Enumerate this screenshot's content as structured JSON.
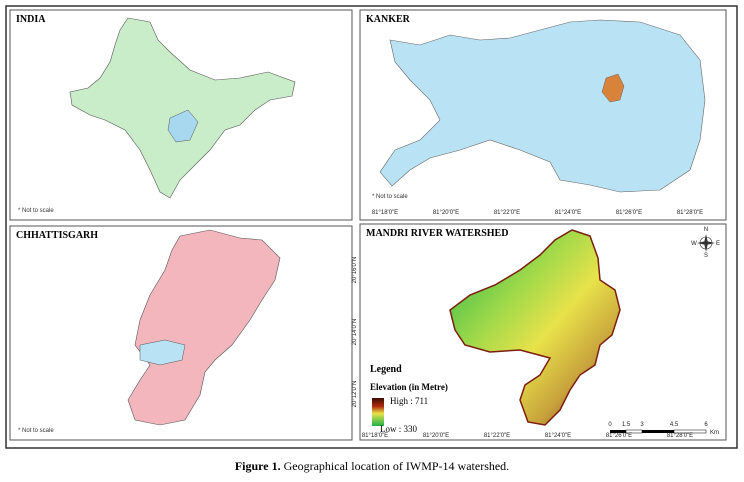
{
  "panels": [
    {
      "title": "INDIA",
      "note": "* Not to scale"
    },
    {
      "title": "KANKER",
      "note": "* Not to scale",
      "x_labels": [
        "81°18'0\"E",
        "81°20'0\"E",
        "81°22'0\"E",
        "81°24'0\"E",
        "81°26'0\"E",
        "81°28'0\"E"
      ]
    },
    {
      "title": "CHHATTISGARH",
      "note": "* Not to scale"
    },
    {
      "title": "MANDRI RIVER WATERSHED",
      "x_labels": [
        "81°18'0\"E",
        "81°20'0\"E",
        "81°22'0\"E",
        "81°24'0\"E",
        "81°26'0\"E",
        "81°28'0\"E"
      ],
      "y_labels": [
        "20°16'0\"N",
        "20°14'0\"N",
        "20°12'0\"N"
      ],
      "legend": {
        "title": "Legend",
        "subtitle": "Elevation (in Metre)",
        "high": "High : 711",
        "low": "Low : 330"
      },
      "scale": {
        "ticks": [
          "0",
          "1.5",
          "3",
          "4.5",
          "6"
        ],
        "unit": "Km"
      },
      "compass": [
        "N",
        "E",
        "S",
        "W"
      ]
    }
  ],
  "caption": {
    "label": "Figure 1.",
    "text": "Geographical location of IWMP-14 watershed."
  }
}
